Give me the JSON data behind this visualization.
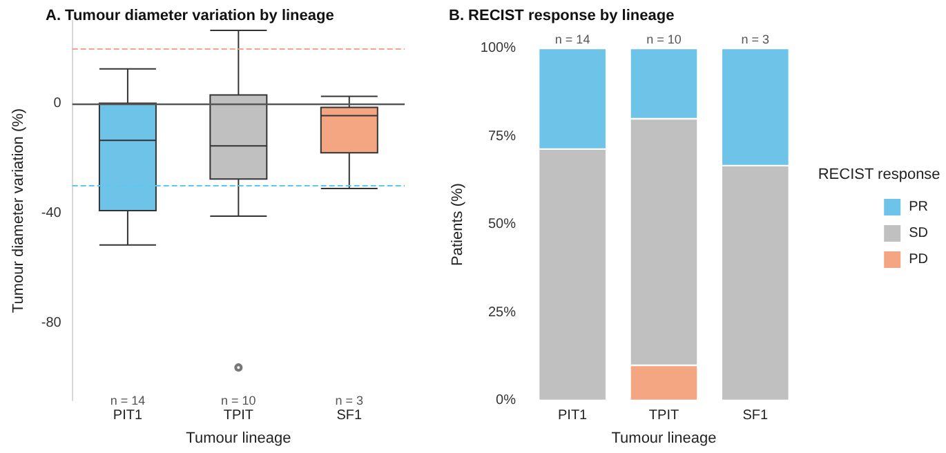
{
  "chart_data": [
    {
      "type": "box",
      "title": "A. Tumour diameter variation by lineage",
      "xlabel": "Tumour lineage",
      "ylabel": "Tumour diameter variation (%)",
      "categories": [
        "PIT1",
        "TPIT",
        "SF1"
      ],
      "boxes": [
        {
          "low": -51.5,
          "q1": -39,
          "median": -13.5,
          "q3": 0,
          "high": 12.5
        },
        {
          "low": -41,
          "q1": -27.5,
          "median": -15.5,
          "q3": 3,
          "high": 26.5,
          "outliers": [
            -96
          ]
        },
        {
          "low": -31,
          "q1": -18,
          "median": -4.5,
          "q3": -1.5,
          "high": 2.5
        }
      ],
      "colors": [
        "#6ec3e8",
        "#c0c0c0",
        "#f4a582"
      ],
      "ylim": [
        -108,
        30
      ],
      "yticks": [
        0,
        -40,
        -80
      ],
      "grid": false,
      "ref_lines": [
        {
          "axis": "y",
          "value": 20,
          "color": "#f9a08a",
          "line_style": "dashed"
        },
        {
          "axis": "y",
          "value": -30,
          "color": "#5bc8f0",
          "line_style": "dashed"
        },
        {
          "axis": "y",
          "value": 0,
          "color": "#555555",
          "line_style": "solid"
        }
      ],
      "annotations": [
        "n = 14",
        "n = 10",
        "n = 3"
      ]
    },
    {
      "type": "bar",
      "stacked": true,
      "title": "B. RECIST response by lineage",
      "xlabel": "Tumour lineage",
      "ylabel": "Patients (%)",
      "legend_title": "RECIST response",
      "categories": [
        "PIT1",
        "TPIT",
        "SF1"
      ],
      "series": [
        {
          "name": "PD",
          "color": "#f4a582",
          "values": [
            0,
            10,
            0
          ]
        },
        {
          "name": "SD",
          "color": "#c0c0c0",
          "values": [
            71.4,
            70,
            66.7
          ]
        },
        {
          "name": "PR",
          "color": "#6ec3e8",
          "values": [
            28.6,
            20,
            33.3
          ]
        }
      ],
      "ylim": [
        0,
        100
      ],
      "yticks": [
        {
          "value": 0,
          "label": "0%"
        },
        {
          "value": 25,
          "label": "25%"
        },
        {
          "value": 50,
          "label": "50%"
        },
        {
          "value": 75,
          "label": "75%"
        },
        {
          "value": 100,
          "label": "100%"
        }
      ],
      "grid": false,
      "legend": "right",
      "annotations": [
        {
          "text": "n = 14",
          "x": "PIT1",
          "y": 100
        },
        {
          "text": "n = 10",
          "x": "TPIT",
          "y": 100
        },
        {
          "text": "n = 3",
          "x": "SF1",
          "y": 100
        }
      ]
    }
  ]
}
